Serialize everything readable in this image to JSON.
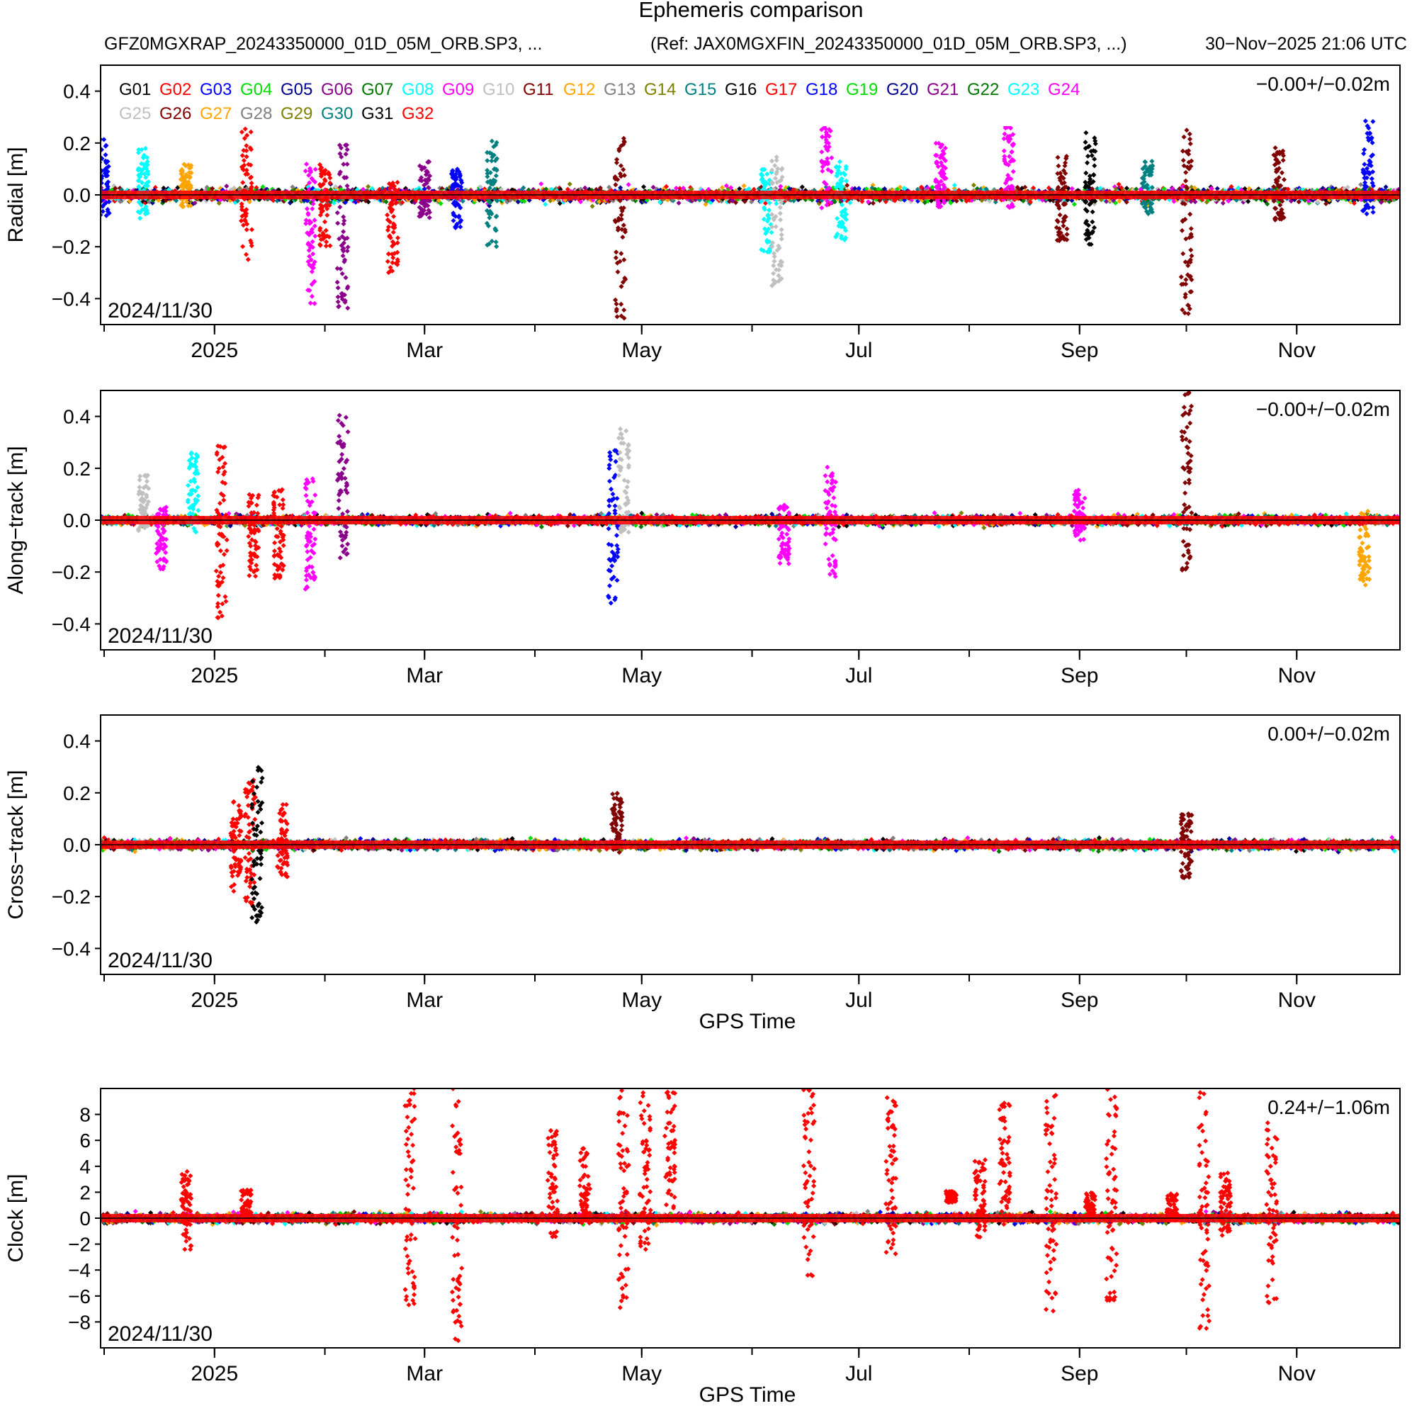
{
  "header": {
    "title": "Ephemeris comparison",
    "subtitle_left": "GFZ0MGXRAP_20243350000_01D_05M_ORB.SP3, ...",
    "subtitle_ref": "(Ref: JAX0MGXFIN_20243350000_01D_05M_ORB.SP3, ...)",
    "timestamp": "30−Nov−2025 21:06 UTC"
  },
  "legend": [
    {
      "name": "G01",
      "color": "#000000"
    },
    {
      "name": "G02",
      "color": "#ff0000"
    },
    {
      "name": "G03",
      "color": "#0000ff"
    },
    {
      "name": "G04",
      "color": "#00dd00"
    },
    {
      "name": "G05",
      "color": "#000090"
    },
    {
      "name": "G06",
      "color": "#8b008b"
    },
    {
      "name": "G07",
      "color": "#007700"
    },
    {
      "name": "G08",
      "color": "#00ffff"
    },
    {
      "name": "G09",
      "color": "#ff00ff"
    },
    {
      "name": "G10",
      "color": "#c0c0c0"
    },
    {
      "name": "G11",
      "color": "#800000"
    },
    {
      "name": "G12",
      "color": "#ffa500"
    },
    {
      "name": "G13",
      "color": "#808080"
    },
    {
      "name": "G14",
      "color": "#808000"
    },
    {
      "name": "G15",
      "color": "#008080"
    },
    {
      "name": "G16",
      "color": "#000000"
    },
    {
      "name": "G17",
      "color": "#ff0000"
    },
    {
      "name": "G18",
      "color": "#0000ff"
    },
    {
      "name": "G19",
      "color": "#00dd00"
    },
    {
      "name": "G20",
      "color": "#000090"
    },
    {
      "name": "G21",
      "color": "#8b008b"
    },
    {
      "name": "G22",
      "color": "#007700"
    },
    {
      "name": "G23",
      "color": "#00ffff"
    },
    {
      "name": "G24",
      "color": "#ff00ff"
    },
    {
      "name": "G25",
      "color": "#c0c0c0"
    },
    {
      "name": "G26",
      "color": "#800000"
    },
    {
      "name": "G27",
      "color": "#ffa500"
    },
    {
      "name": "G28",
      "color": "#808080"
    },
    {
      "name": "G29",
      "color": "#808000"
    },
    {
      "name": "G30",
      "color": "#008080"
    },
    {
      "name": "G31",
      "color": "#000000"
    },
    {
      "name": "G32",
      "color": "#ff0000"
    }
  ],
  "chart_data": [
    {
      "type": "scatter",
      "ylabel": "Radial [m]",
      "xlabel": "",
      "date_label": "2024/11/30",
      "stats": "−0.00+/−0.02m",
      "xlim": [
        "2024-11-30",
        "2025-11-30"
      ],
      "ylim": [
        -0.5,
        0.5
      ],
      "yticks": [
        {
          "v": 0.4,
          "t": "0.4"
        },
        {
          "v": 0.2,
          "t": "0.2"
        },
        {
          "v": 0.0,
          "t": "0.0"
        },
        {
          "v": -0.2,
          "t": "−0.2"
        },
        {
          "v": -0.4,
          "t": "−0.4"
        }
      ],
      "xticks": [
        {
          "date": "2025-01-01",
          "t": "2025"
        },
        {
          "date": "2025-03-01",
          "t": "Mar"
        },
        {
          "date": "2025-05-01",
          "t": "May"
        },
        {
          "date": "2025-07-01",
          "t": "Jul"
        },
        {
          "date": "2025-09-01",
          "t": "Sep"
        },
        {
          "date": "2025-11-01",
          "t": "Nov"
        }
      ],
      "typical_spread": 0.03,
      "mean_line": 0.0,
      "excursions": [
        {
          "date": "2024-12-01",
          "sat": "G03",
          "min": -0.08,
          "max": 0.22
        },
        {
          "date": "2024-12-12",
          "sat": "G08",
          "min": -0.1,
          "max": 0.18
        },
        {
          "date": "2024-12-24",
          "sat": "G12",
          "min": -0.05,
          "max": 0.12
        },
        {
          "date": "2025-01-10",
          "sat": "G02",
          "min": -0.25,
          "max": 0.3
        },
        {
          "date": "2025-01-28",
          "sat": "G09",
          "min": -0.43,
          "max": 0.12
        },
        {
          "date": "2025-02-01",
          "sat": "G02",
          "min": -0.2,
          "max": 0.12
        },
        {
          "date": "2025-02-06",
          "sat": "G06",
          "min": -0.44,
          "max": 0.2
        },
        {
          "date": "2025-02-20",
          "sat": "G02",
          "min": -0.3,
          "max": 0.05
        },
        {
          "date": "2025-03-01",
          "sat": "G06",
          "min": -0.1,
          "max": 0.13
        },
        {
          "date": "2025-03-10",
          "sat": "G03",
          "min": -0.13,
          "max": 0.1
        },
        {
          "date": "2025-03-20",
          "sat": "G15",
          "min": -0.2,
          "max": 0.22
        },
        {
          "date": "2025-04-25",
          "sat": "G11",
          "min": -0.48,
          "max": 0.29
        },
        {
          "date": "2025-06-05",
          "sat": "G08",
          "min": -0.22,
          "max": 0.1
        },
        {
          "date": "2025-06-08",
          "sat": "G10",
          "min": -0.38,
          "max": 0.15
        },
        {
          "date": "2025-06-22",
          "sat": "G09",
          "min": -0.05,
          "max": 0.34
        },
        {
          "date": "2025-06-26",
          "sat": "G08",
          "min": -0.18,
          "max": 0.13
        },
        {
          "date": "2025-07-24",
          "sat": "G09",
          "min": -0.05,
          "max": 0.2
        },
        {
          "date": "2025-08-12",
          "sat": "G09",
          "min": -0.05,
          "max": 0.29
        },
        {
          "date": "2025-08-27",
          "sat": "G11",
          "min": -0.18,
          "max": 0.15
        },
        {
          "date": "2025-09-04",
          "sat": "G01",
          "min": -0.2,
          "max": 0.24
        },
        {
          "date": "2025-09-20",
          "sat": "G15",
          "min": -0.08,
          "max": 0.13
        },
        {
          "date": "2025-10-01",
          "sat": "G11",
          "min": -0.46,
          "max": 0.25
        },
        {
          "date": "2025-10-27",
          "sat": "G11",
          "min": -0.1,
          "max": 0.2
        },
        {
          "date": "2025-11-21",
          "sat": "G03",
          "min": -0.08,
          "max": 0.29
        }
      ]
    },
    {
      "type": "scatter",
      "ylabel": "Along−track [m]",
      "xlabel": "",
      "date_label": "2024/11/30",
      "stats": "−0.00+/−0.02m",
      "xlim": [
        "2024-11-30",
        "2025-11-30"
      ],
      "ylim": [
        -0.5,
        0.5
      ],
      "yticks": [
        {
          "v": 0.4,
          "t": "0.4"
        },
        {
          "v": 0.2,
          "t": "0.2"
        },
        {
          "v": 0.0,
          "t": "0.0"
        },
        {
          "v": -0.2,
          "t": "−0.2"
        },
        {
          "v": -0.4,
          "t": "−0.4"
        }
      ],
      "xticks": [
        {
          "date": "2025-01-01",
          "t": "2025"
        },
        {
          "date": "2025-03-01",
          "t": "Mar"
        },
        {
          "date": "2025-05-01",
          "t": "May"
        },
        {
          "date": "2025-07-01",
          "t": "Jul"
        },
        {
          "date": "2025-09-01",
          "t": "Sep"
        },
        {
          "date": "2025-11-01",
          "t": "Nov"
        }
      ],
      "typical_spread": 0.02,
      "mean_line": 0.0,
      "excursions": [
        {
          "date": "2024-12-12",
          "sat": "G10",
          "min": -0.05,
          "max": 0.18
        },
        {
          "date": "2024-12-17",
          "sat": "G09",
          "min": -0.19,
          "max": 0.05
        },
        {
          "date": "2024-12-26",
          "sat": "G08",
          "min": -0.05,
          "max": 0.26
        },
        {
          "date": "2025-01-03",
          "sat": "G02",
          "min": -0.4,
          "max": 0.29
        },
        {
          "date": "2025-01-12",
          "sat": "G02",
          "min": -0.22,
          "max": 0.1
        },
        {
          "date": "2025-01-19",
          "sat": "G02",
          "min": -0.23,
          "max": 0.12
        },
        {
          "date": "2025-01-28",
          "sat": "G09",
          "min": -0.27,
          "max": 0.16
        },
        {
          "date": "2025-02-06",
          "sat": "G06",
          "min": -0.16,
          "max": 0.43
        },
        {
          "date": "2025-04-23",
          "sat": "G03",
          "min": -0.32,
          "max": 0.28
        },
        {
          "date": "2025-04-26",
          "sat": "G10",
          "min": -0.05,
          "max": 0.36
        },
        {
          "date": "2025-06-10",
          "sat": "G09",
          "min": -0.17,
          "max": 0.06
        },
        {
          "date": "2025-06-23",
          "sat": "G09",
          "min": -0.23,
          "max": 0.21
        },
        {
          "date": "2025-09-01",
          "sat": "G09",
          "min": -0.08,
          "max": 0.12
        },
        {
          "date": "2025-10-01",
          "sat": "G11",
          "min": -0.21,
          "max": 0.5
        },
        {
          "date": "2025-11-20",
          "sat": "G12",
          "min": -0.25,
          "max": 0.05
        }
      ]
    },
    {
      "type": "scatter",
      "ylabel": "Cross−track [m]",
      "xlabel": "GPS Time",
      "date_label": "2024/11/30",
      "stats": "0.00+/−0.02m",
      "xlim": [
        "2024-11-30",
        "2025-11-30"
      ],
      "ylim": [
        -0.5,
        0.5
      ],
      "yticks": [
        {
          "v": 0.4,
          "t": "0.4"
        },
        {
          "v": 0.2,
          "t": "0.2"
        },
        {
          "v": 0.0,
          "t": "0.0"
        },
        {
          "v": -0.2,
          "t": "−0.2"
        },
        {
          "v": -0.4,
          "t": "−0.4"
        }
      ],
      "xticks": [
        {
          "date": "2025-01-01",
          "t": "2025"
        },
        {
          "date": "2025-03-01",
          "t": "Mar"
        },
        {
          "date": "2025-05-01",
          "t": "May"
        },
        {
          "date": "2025-07-01",
          "t": "Jul"
        },
        {
          "date": "2025-09-01",
          "t": "Sep"
        },
        {
          "date": "2025-11-01",
          "t": "Nov"
        }
      ],
      "typical_spread": 0.02,
      "mean_line": 0.0,
      "excursions": [
        {
          "date": "2025-01-07",
          "sat": "G02",
          "min": -0.18,
          "max": 0.17
        },
        {
          "date": "2025-01-11",
          "sat": "G02",
          "min": -0.25,
          "max": 0.25
        },
        {
          "date": "2025-01-13",
          "sat": "G01",
          "min": -0.3,
          "max": 0.3
        },
        {
          "date": "2025-01-20",
          "sat": "G02",
          "min": -0.13,
          "max": 0.16
        },
        {
          "date": "2025-04-24",
          "sat": "G11",
          "min": -0.03,
          "max": 0.2
        },
        {
          "date": "2025-10-01",
          "sat": "G11",
          "min": -0.13,
          "max": 0.12
        }
      ]
    },
    {
      "type": "scatter",
      "ylabel": "Clock [m]",
      "xlabel": "GPS Time",
      "date_label": "2024/11/30",
      "stats": "0.24+/−1.06m",
      "xlim": [
        "2024-11-30",
        "2025-11-30"
      ],
      "ylim": [
        -10,
        10
      ],
      "yticks": [
        {
          "v": 8,
          "t": "8"
        },
        {
          "v": 6,
          "t": "6"
        },
        {
          "v": 4,
          "t": "4"
        },
        {
          "v": 2,
          "t": "2"
        },
        {
          "v": 0,
          "t": "0"
        },
        {
          "v": -2,
          "t": "−2"
        },
        {
          "v": -4,
          "t": "−4"
        },
        {
          "v": -6,
          "t": "−6"
        },
        {
          "v": -8,
          "t": "−8"
        }
      ],
      "xticks": [
        {
          "date": "2025-01-01",
          "t": "2025"
        },
        {
          "date": "2025-03-01",
          "t": "Mar"
        },
        {
          "date": "2025-05-01",
          "t": "May"
        },
        {
          "date": "2025-07-01",
          "t": "Jul"
        },
        {
          "date": "2025-09-01",
          "t": "Sep"
        },
        {
          "date": "2025-11-01",
          "t": "Nov"
        }
      ],
      "typical_spread": 0.4,
      "mean_line": 0.0,
      "excursions": [
        {
          "date": "2024-12-24",
          "sat": "G02",
          "min": -2.5,
          "max": 3.8
        },
        {
          "date": "2025-01-10",
          "sat": "G02",
          "min": -0.2,
          "max": 2.2
        },
        {
          "date": "2025-02-25",
          "sat": "G02",
          "min": -7.0,
          "max": 10.0
        },
        {
          "date": "2025-03-10",
          "sat": "G02",
          "min": -9.5,
          "max": 10.0
        },
        {
          "date": "2025-04-06",
          "sat": "G02",
          "min": -1.5,
          "max": 6.8
        },
        {
          "date": "2025-04-15",
          "sat": "G02",
          "min": -0.5,
          "max": 5.5
        },
        {
          "date": "2025-04-26",
          "sat": "G02",
          "min": -8.0,
          "max": 10.0
        },
        {
          "date": "2025-05-02",
          "sat": "G02",
          "min": -2.5,
          "max": 10.0
        },
        {
          "date": "2025-05-09",
          "sat": "G02",
          "min": -0.2,
          "max": 10.0
        },
        {
          "date": "2025-06-17",
          "sat": "G02",
          "min": -5.0,
          "max": 10.0
        },
        {
          "date": "2025-07-10",
          "sat": "G02",
          "min": -3.0,
          "max": 10.0
        },
        {
          "date": "2025-07-27",
          "sat": "G02",
          "min": 1.2,
          "max": 2.1
        },
        {
          "date": "2025-08-04",
          "sat": "G02",
          "min": -1.5,
          "max": 4.5
        },
        {
          "date": "2025-08-11",
          "sat": "G02",
          "min": -0.5,
          "max": 9.0
        },
        {
          "date": "2025-08-24",
          "sat": "G02",
          "min": -8.0,
          "max": 10.0
        },
        {
          "date": "2025-09-04",
          "sat": "G02",
          "min": 0.0,
          "max": 2.0
        },
        {
          "date": "2025-09-10",
          "sat": "G02",
          "min": -6.5,
          "max": 10.0
        },
        {
          "date": "2025-09-27",
          "sat": "G02",
          "min": -0.2,
          "max": 2.0
        },
        {
          "date": "2025-10-06",
          "sat": "G02",
          "min": -8.5,
          "max": 10.0
        },
        {
          "date": "2025-10-12",
          "sat": "G02",
          "min": -1.5,
          "max": 3.5
        },
        {
          "date": "2025-10-25",
          "sat": "G02",
          "min": -7.0,
          "max": 9.5
        }
      ]
    }
  ]
}
